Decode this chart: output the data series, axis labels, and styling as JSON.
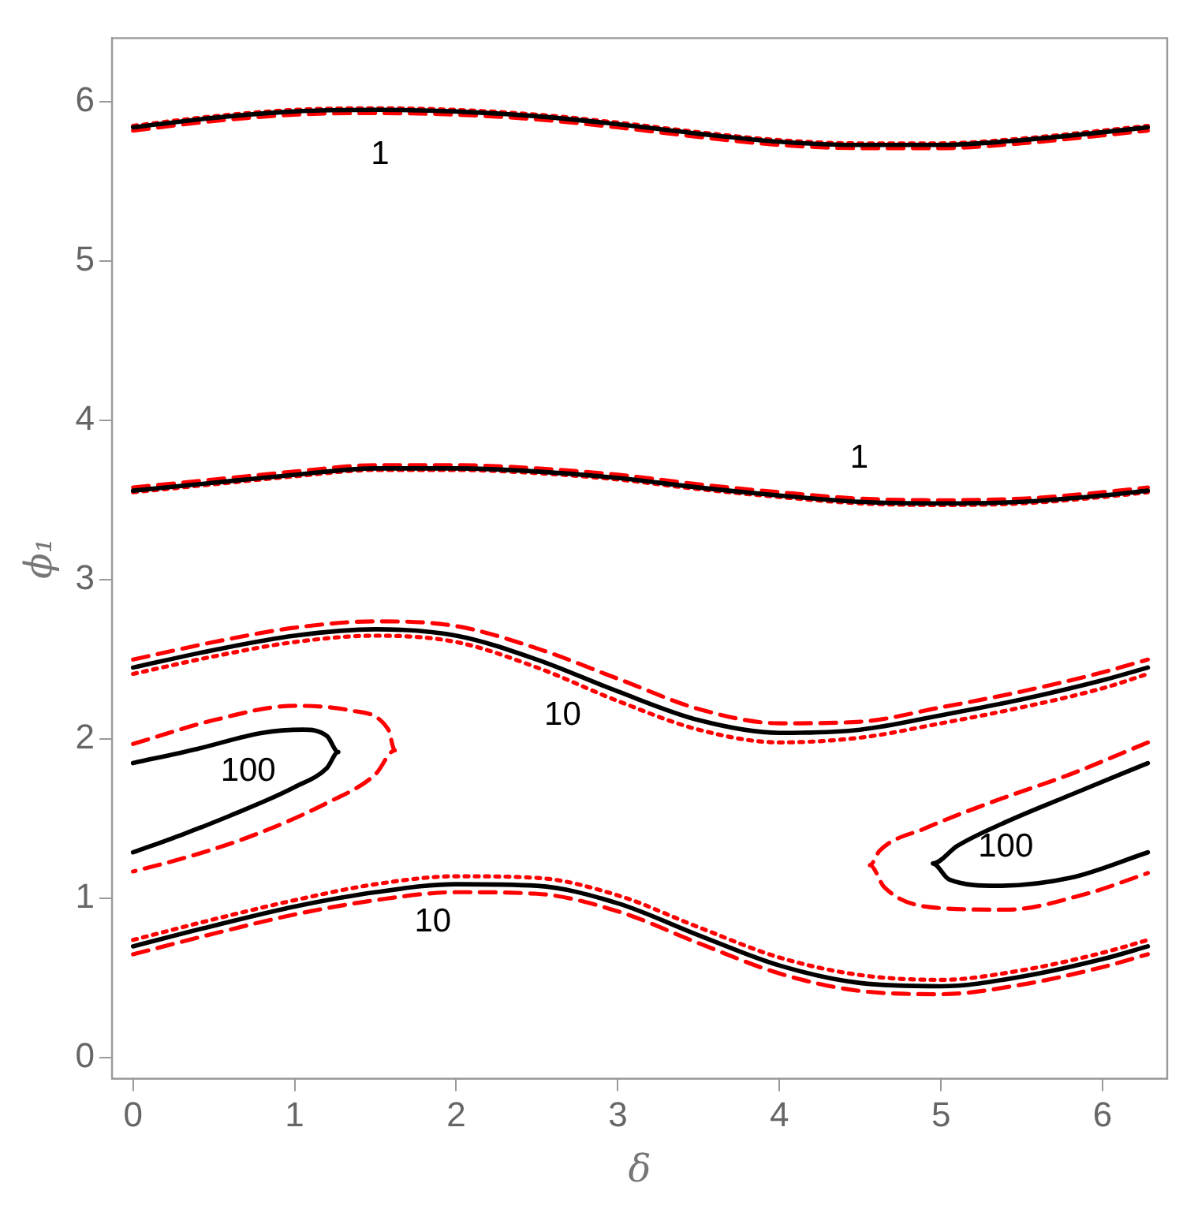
{
  "chart_data": {
    "type": "line",
    "xlabel": "δ",
    "ylabel": "ϕ₁",
    "xlim": [
      -0.13,
      6.4
    ],
    "ylim": [
      -0.13,
      6.4
    ],
    "xticks": [
      0,
      1,
      2,
      3,
      4,
      5,
      6
    ],
    "yticks": [
      0,
      1,
      2,
      3,
      4,
      5,
      6
    ],
    "grid": false,
    "legend": false,
    "marker": "none",
    "series": [
      {
        "color": "#000000",
        "line_style": "solid",
        "x": [
          0,
          0.5,
          1,
          1.5,
          2,
          2.5,
          3,
          3.5,
          4,
          4.5,
          5,
          5.5,
          6,
          6.28
        ],
        "values": [
          5.84,
          5.9,
          5.94,
          5.95,
          5.94,
          5.91,
          5.86,
          5.8,
          5.75,
          5.73,
          5.73,
          5.76,
          5.81,
          5.84
        ]
      },
      {
        "color": "#ff0000",
        "line_style": "dashed",
        "x": [
          0,
          0.5,
          1,
          1.5,
          2,
          2.5,
          3,
          3.5,
          4,
          4.5,
          5,
          5.5,
          6,
          6.28
        ],
        "values": [
          5.82,
          5.88,
          5.92,
          5.93,
          5.92,
          5.89,
          5.84,
          5.78,
          5.73,
          5.71,
          5.71,
          5.74,
          5.79,
          5.82
        ]
      },
      {
        "color": "#ff0000",
        "line_style": "dotted",
        "x": [
          0,
          0.5,
          1,
          1.5,
          2,
          2.5,
          3,
          3.5,
          4,
          4.5,
          5,
          5.5,
          6,
          6.28
        ],
        "values": [
          5.85,
          5.91,
          5.95,
          5.96,
          5.95,
          5.92,
          5.87,
          5.81,
          5.76,
          5.74,
          5.74,
          5.77,
          5.82,
          5.85
        ]
      },
      {
        "color": "#000000",
        "line_style": "solid",
        "x": [
          0,
          0.5,
          1,
          1.5,
          2,
          2.5,
          3,
          3.5,
          4,
          4.5,
          5,
          5.5,
          6,
          6.28
        ],
        "values": [
          3.56,
          3.61,
          3.66,
          3.7,
          3.7,
          3.68,
          3.64,
          3.58,
          3.53,
          3.49,
          3.48,
          3.49,
          3.53,
          3.56
        ]
      },
      {
        "color": "#ff0000",
        "line_style": "dashed",
        "x": [
          0,
          0.5,
          1,
          1.5,
          2,
          2.5,
          3,
          3.5,
          4,
          4.5,
          5,
          5.5,
          6,
          6.28
        ],
        "values": [
          3.58,
          3.63,
          3.68,
          3.72,
          3.72,
          3.7,
          3.66,
          3.6,
          3.55,
          3.51,
          3.5,
          3.51,
          3.55,
          3.58
        ]
      },
      {
        "color": "#ff0000",
        "line_style": "dotted",
        "x": [
          0,
          0.5,
          1,
          1.5,
          2,
          2.5,
          3,
          3.5,
          4,
          4.5,
          5,
          5.5,
          6,
          6.28
        ],
        "values": [
          3.55,
          3.6,
          3.65,
          3.69,
          3.69,
          3.67,
          3.63,
          3.57,
          3.52,
          3.48,
          3.47,
          3.48,
          3.52,
          3.55
        ]
      },
      {
        "color": "#000000",
        "line_style": "solid",
        "x": [
          0,
          0.5,
          1,
          1.5,
          2,
          2.5,
          3,
          3.5,
          4,
          4.5,
          5,
          5.5,
          6,
          6.28
        ],
        "values": [
          2.45,
          2.56,
          2.65,
          2.69,
          2.65,
          2.5,
          2.3,
          2.12,
          2.04,
          2.06,
          2.15,
          2.25,
          2.37,
          2.45
        ]
      },
      {
        "color": "#ff0000",
        "line_style": "dashed",
        "x": [
          0,
          0.5,
          1,
          1.5,
          2,
          2.5,
          3,
          3.5,
          4,
          4.5,
          5,
          5.5,
          6,
          6.28
        ],
        "values": [
          2.5,
          2.61,
          2.7,
          2.74,
          2.71,
          2.57,
          2.38,
          2.19,
          2.1,
          2.11,
          2.2,
          2.3,
          2.42,
          2.5
        ]
      },
      {
        "color": "#ff0000",
        "line_style": "dotted",
        "x": [
          0,
          0.5,
          1,
          1.5,
          2,
          2.5,
          3,
          3.5,
          4,
          4.5,
          5,
          5.5,
          6,
          6.28
        ],
        "values": [
          2.41,
          2.52,
          2.61,
          2.65,
          2.61,
          2.45,
          2.24,
          2.06,
          1.98,
          2.01,
          2.1,
          2.2,
          2.32,
          2.41
        ]
      },
      {
        "color": "#000000",
        "line_style": "solid",
        "x": [
          0,
          0.5,
          1,
          1.5,
          2,
          2.5,
          3,
          3.5,
          4,
          4.5,
          5,
          5.5,
          6,
          6.28
        ],
        "values": [
          0.7,
          0.83,
          0.95,
          1.04,
          1.09,
          1.08,
          0.97,
          0.77,
          0.58,
          0.47,
          0.45,
          0.51,
          0.62,
          0.7
        ]
      },
      {
        "color": "#ff0000",
        "line_style": "dotted",
        "x": [
          0,
          0.5,
          1,
          1.5,
          2,
          2.5,
          3,
          3.5,
          4,
          4.5,
          5,
          5.5,
          6,
          6.28
        ],
        "values": [
          0.74,
          0.87,
          0.99,
          1.09,
          1.14,
          1.13,
          1.02,
          0.82,
          0.63,
          0.52,
          0.49,
          0.55,
          0.66,
          0.74
        ]
      },
      {
        "color": "#ff0000",
        "line_style": "dashed",
        "x": [
          0,
          0.5,
          1,
          1.5,
          2,
          2.5,
          3,
          3.5,
          4,
          4.5,
          5,
          5.5,
          6,
          6.28
        ],
        "values": [
          0.65,
          0.78,
          0.9,
          0.99,
          1.04,
          1.03,
          0.92,
          0.72,
          0.53,
          0.42,
          0.4,
          0.46,
          0.57,
          0.65
        ]
      },
      {
        "color": "#000000",
        "line_style": "solid",
        "x": [
          0,
          0.4,
          0.8,
          1.05,
          1.2,
          1.27,
          1.2,
          1,
          0.6,
          0.3,
          0
        ],
        "values": [
          1.85,
          1.94,
          2.04,
          2.06,
          2.02,
          1.92,
          1.82,
          1.7,
          1.52,
          1.4,
          1.29
        ]
      },
      {
        "color": "#ff0000",
        "line_style": "dashed",
        "x": [
          0,
          0.5,
          1,
          1.35,
          1.58,
          1.62,
          1.5,
          1.2,
          0.7,
          0.3,
          0
        ],
        "values": [
          1.97,
          2.12,
          2.21,
          2.18,
          2.06,
          1.93,
          1.78,
          1.6,
          1.38,
          1.25,
          1.17
        ]
      },
      {
        "color": "#000000",
        "line_style": "solid",
        "x": [
          6.28,
          5.8,
          5.4,
          5.1,
          4.95,
          5.05,
          5.35,
          5.8,
          6.28
        ],
        "values": [
          1.85,
          1.65,
          1.48,
          1.33,
          1.22,
          1.12,
          1.08,
          1.13,
          1.29
        ]
      },
      {
        "color": "#ff0000",
        "line_style": "dashed",
        "x": [
          6.28,
          5.8,
          5.3,
          4.9,
          4.62,
          4.56,
          4.65,
          5,
          5.4,
          5.9,
          6.28
        ],
        "values": [
          1.98,
          1.78,
          1.6,
          1.44,
          1.3,
          1.21,
          1.07,
          0.94,
          0.93,
          1.03,
          1.16
        ]
      }
    ],
    "annotations": [
      "1",
      "1",
      "10",
      "10",
      "100",
      "100"
    ]
  }
}
